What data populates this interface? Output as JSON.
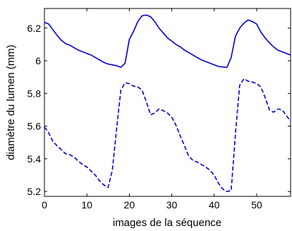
{
  "chart_data": {
    "type": "line",
    "title": "",
    "xlabel": "images de la séquence",
    "ylabel": "diamètre du lumen (mm)",
    "xlim": [
      0,
      58
    ],
    "ylim": [
      5.17,
      6.32
    ],
    "xticks": [
      0,
      10,
      20,
      30,
      40,
      50
    ],
    "yticks": [
      5.2,
      5.4,
      5.6,
      5.8,
      6,
      6.2
    ],
    "ytick_labels": [
      "5.2",
      "5.4",
      "5.6",
      "5.8",
      "6",
      "6.2"
    ],
    "grid": false,
    "line_color": "#0000cc",
    "series": [
      {
        "style": "solid",
        "points": [
          [
            0,
            6.235
          ],
          [
            1,
            6.225
          ],
          [
            2,
            6.19
          ],
          [
            3,
            6.155
          ],
          [
            4,
            6.125
          ],
          [
            5,
            6.105
          ],
          [
            6,
            6.095
          ],
          [
            7,
            6.08
          ],
          [
            8,
            6.065
          ],
          [
            9,
            6.055
          ],
          [
            10,
            6.045
          ],
          [
            11,
            6.035
          ],
          [
            12,
            6.02
          ],
          [
            13,
            6.005
          ],
          [
            14,
            5.99
          ],
          [
            15,
            5.98
          ],
          [
            16,
            5.975
          ],
          [
            17,
            5.97
          ],
          [
            18,
            5.96
          ],
          [
            19,
            5.985
          ],
          [
            20,
            6.13
          ],
          [
            21,
            6.18
          ],
          [
            22,
            6.24
          ],
          [
            23,
            6.275
          ],
          [
            24,
            6.28
          ],
          [
            25,
            6.27
          ],
          [
            26,
            6.24
          ],
          [
            27,
            6.2
          ],
          [
            28,
            6.17
          ],
          [
            29,
            6.14
          ],
          [
            30,
            6.12
          ],
          [
            31,
            6.1
          ],
          [
            32,
            6.085
          ],
          [
            33,
            6.065
          ],
          [
            34,
            6.05
          ],
          [
            35,
            6.035
          ],
          [
            36,
            6.02
          ],
          [
            37,
            6.005
          ],
          [
            38,
            5.995
          ],
          [
            39,
            5.985
          ],
          [
            40,
            5.975
          ],
          [
            41,
            5.965
          ],
          [
            42,
            5.962
          ],
          [
            43,
            5.96
          ],
          [
            44,
            6.02
          ],
          [
            45,
            6.15
          ],
          [
            46,
            6.2
          ],
          [
            47,
            6.23
          ],
          [
            48,
            6.25
          ],
          [
            49,
            6.24
          ],
          [
            50,
            6.225
          ],
          [
            51,
            6.175
          ],
          [
            52,
            6.14
          ],
          [
            53,
            6.11
          ],
          [
            54,
            6.085
          ],
          [
            55,
            6.065
          ],
          [
            56,
            6.055
          ],
          [
            57,
            6.045
          ],
          [
            58,
            6.035
          ]
        ]
      },
      {
        "style": "dashed",
        "points": [
          [
            0,
            5.595
          ],
          [
            1,
            5.56
          ],
          [
            2,
            5.505
          ],
          [
            3,
            5.48
          ],
          [
            4,
            5.455
          ],
          [
            5,
            5.43
          ],
          [
            6,
            5.425
          ],
          [
            7,
            5.41
          ],
          [
            8,
            5.385
          ],
          [
            9,
            5.365
          ],
          [
            10,
            5.35
          ],
          [
            11,
            5.325
          ],
          [
            12,
            5.3
          ],
          [
            13,
            5.265
          ],
          [
            14,
            5.24
          ],
          [
            15,
            5.225
          ],
          [
            16,
            5.33
          ],
          [
            17,
            5.58
          ],
          [
            18,
            5.82
          ],
          [
            19,
            5.865
          ],
          [
            20,
            5.86
          ],
          [
            21,
            5.845
          ],
          [
            22,
            5.84
          ],
          [
            23,
            5.82
          ],
          [
            24,
            5.75
          ],
          [
            25,
            5.67
          ],
          [
            26,
            5.68
          ],
          [
            27,
            5.705
          ],
          [
            28,
            5.695
          ],
          [
            29,
            5.68
          ],
          [
            30,
            5.655
          ],
          [
            31,
            5.605
          ],
          [
            32,
            5.54
          ],
          [
            33,
            5.48
          ],
          [
            34,
            5.415
          ],
          [
            35,
            5.39
          ],
          [
            36,
            5.38
          ],
          [
            37,
            5.365
          ],
          [
            38,
            5.35
          ],
          [
            39,
            5.33
          ],
          [
            40,
            5.3
          ],
          [
            41,
            5.25
          ],
          [
            42,
            5.215
          ],
          [
            43,
            5.2
          ],
          [
            44,
            5.205
          ],
          [
            45,
            5.55
          ],
          [
            46,
            5.85
          ],
          [
            47,
            5.89
          ],
          [
            48,
            5.875
          ],
          [
            49,
            5.87
          ],
          [
            50,
            5.86
          ],
          [
            51,
            5.84
          ],
          [
            52,
            5.775
          ],
          [
            53,
            5.7
          ],
          [
            54,
            5.685
          ],
          [
            55,
            5.705
          ],
          [
            56,
            5.7
          ],
          [
            57,
            5.665
          ],
          [
            58,
            5.63
          ]
        ]
      }
    ]
  }
}
